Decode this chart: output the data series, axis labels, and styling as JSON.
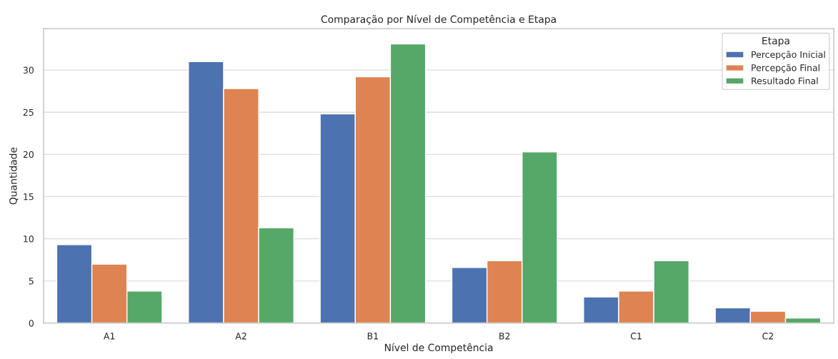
{
  "chart_data": {
    "type": "bar",
    "title": "Comparação por Nível de Competência e Etapa",
    "xlabel": "Nível de Competência",
    "ylabel": "Quantidade",
    "legend_title": "Etapa",
    "categories": [
      "A1",
      "A2",
      "B1",
      "B2",
      "C1",
      "C2"
    ],
    "series": [
      {
        "name": "Percepção Inicial",
        "color": "#4c72b0",
        "values": [
          9.3,
          31,
          24.8,
          6.6,
          3.1,
          1.8
        ]
      },
      {
        "name": "Percepção Final",
        "color": "#dd8452",
        "values": [
          7,
          27.8,
          29.2,
          7.4,
          3.8,
          1.4
        ]
      },
      {
        "name": "Resultado Final",
        "color": "#55a868",
        "values": [
          3.8,
          11.3,
          33.1,
          20.3,
          7.4,
          0.6
        ]
      }
    ],
    "ylim": [
      0,
      34.9
    ],
    "yticks": [
      0,
      5,
      10,
      15,
      20,
      25,
      30
    ],
    "grid": "y",
    "legend": "top right"
  }
}
